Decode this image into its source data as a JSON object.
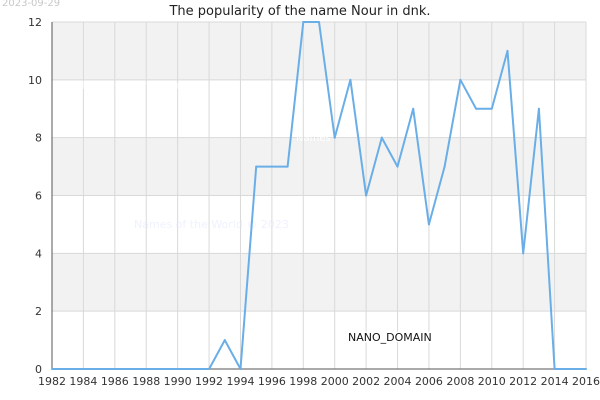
{
  "header": {
    "date_stamp": "2023-09-29"
  },
  "watermarks": {
    "upper": "Names of the World © 2023",
    "lower": "Names of the World © 2023",
    "center": "Names",
    "badge": "NANO_DOMAIN"
  },
  "chart_data": {
    "type": "line",
    "title": "The popularity of the name Nour in dnk.",
    "xlabel": "",
    "ylabel": "",
    "xlim": [
      1982,
      2016
    ],
    "ylim": [
      0,
      12
    ],
    "x_ticks": [
      1982,
      1984,
      1986,
      1988,
      1990,
      1992,
      1994,
      1996,
      1998,
      2000,
      2002,
      2004,
      2006,
      2008,
      2010,
      2012,
      2014,
      2016
    ],
    "y_ticks": [
      0,
      2,
      4,
      6,
      8,
      10,
      12
    ],
    "grid": true,
    "line_color": "#6aaee8",
    "band_color": "#f2f2f2",
    "grid_color": "#d9d9d9",
    "series": [
      {
        "x": [
          1982,
          1983,
          1984,
          1985,
          1986,
          1987,
          1988,
          1989,
          1990,
          1991,
          1992,
          1993,
          1994,
          1995,
          1996,
          1997,
          1998,
          1999,
          2000,
          2001,
          2002,
          2003,
          2004,
          2005,
          2006,
          2007,
          2008,
          2009,
          2010,
          2011,
          2012,
          2013,
          2014,
          2015,
          2016
        ],
        "values": [
          0,
          0,
          0,
          0,
          0,
          0,
          0,
          0,
          0,
          0,
          0,
          1,
          0,
          7,
          7,
          7,
          12,
          12,
          8,
          10,
          6,
          8,
          7,
          9,
          5,
          7,
          10,
          9,
          9,
          11,
          4,
          9,
          0,
          0,
          0
        ]
      }
    ]
  }
}
